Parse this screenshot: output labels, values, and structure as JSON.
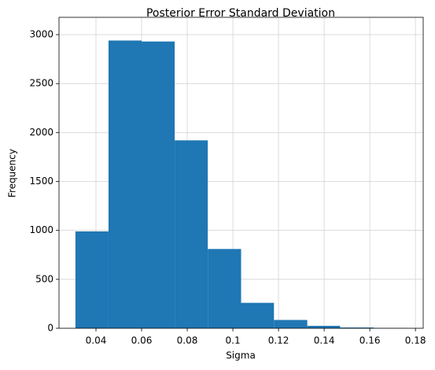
{
  "chart_data": {
    "type": "histogram",
    "title": "Posterior Error Standard Deviation",
    "x_label": "Sigma",
    "y_label": "Frequency",
    "bins": [
      0.031,
      0.0455,
      0.06,
      0.0745,
      0.089,
      0.1036,
      0.118,
      0.1326,
      0.147,
      0.1617,
      0.1762
    ],
    "values": [
      990,
      2940,
      2930,
      1920,
      810,
      260,
      85,
      25,
      8,
      3
    ],
    "color": "#1f77b4",
    "xlim": [
      0.0238,
      0.1834
    ],
    "xticks": [
      0.04,
      0.06,
      0.08,
      0.1,
      0.12,
      0.14,
      0.16,
      0.18
    ],
    "ylim": [
      0,
      3177
    ],
    "yticks": [
      0,
      500,
      1000,
      1500,
      2000,
      2500,
      3000
    ],
    "grid": true
  }
}
